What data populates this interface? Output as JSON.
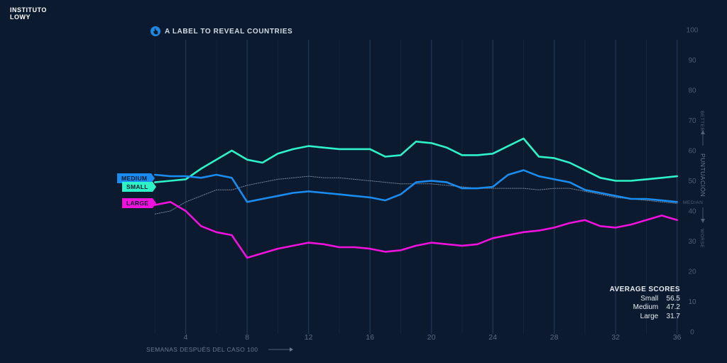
{
  "brand": {
    "line1": "INSTITUTO",
    "line2": "LOWY"
  },
  "hint": {
    "text": "A LABEL TO REVEAL COUNTRIES",
    "icon": "pointer-hand-icon"
  },
  "labels": {
    "medium": "MEDIUM",
    "small": "SMALL",
    "large": "LARGE"
  },
  "average": {
    "title": "AVERAGE SCORES",
    "rows": [
      {
        "name": "Small",
        "value": "56.5"
      },
      {
        "name": "Medium",
        "value": "47.2"
      },
      {
        "name": "Large",
        "value": "31.7"
      }
    ]
  },
  "colors": {
    "background": "#0b1a2f",
    "small": "#2ef2c8",
    "medium": "#1a8cf0",
    "large": "#f012dc",
    "median": "#8a97a8"
  },
  "chart_data": {
    "type": "line",
    "xlabel": "SEMANAS DESPUÉS DEL CASO 100",
    "ylabel": "PUNTUACIÓN",
    "better_label": "BETTER",
    "worse_label": "WORSE",
    "median_label": "MEDIAN",
    "x_ticks": [
      4,
      8,
      12,
      16,
      20,
      24,
      28,
      32,
      36
    ],
    "y_ticks": [
      0,
      10,
      20,
      30,
      40,
      50,
      60,
      70,
      80,
      90,
      100
    ],
    "xlim": [
      1.8,
      36.2
    ],
    "ylim": [
      0,
      100
    ],
    "grid": true,
    "x": [
      2,
      3,
      4,
      5,
      6,
      7,
      8,
      9,
      10,
      11,
      12,
      13,
      14,
      15,
      16,
      17,
      18,
      19,
      20,
      21,
      22,
      23,
      24,
      25,
      26,
      27,
      28,
      29,
      30,
      31,
      32,
      33,
      34,
      35,
      36
    ],
    "series": [
      {
        "name": "Small",
        "values": [
          49.5,
          50,
          50.5,
          54,
          57,
          60,
          57,
          56,
          59,
          60.5,
          61.5,
          61,
          60.5,
          60.5,
          60.5,
          58,
          58.5,
          63,
          62.5,
          61,
          58.5,
          58.5,
          59,
          61.5,
          64,
          58,
          57.5,
          56,
          53.5,
          51,
          50,
          50,
          50.5,
          51,
          51.5
        ]
      },
      {
        "name": "Medium",
        "values": [
          52,
          51.5,
          51.5,
          51,
          52,
          51,
          43,
          44,
          45,
          46,
          46.5,
          46,
          45.5,
          45,
          44.5,
          43.5,
          45.5,
          49.5,
          50,
          49.5,
          47.5,
          47.5,
          48,
          52,
          53.5,
          51.5,
          50.5,
          49.5,
          47,
          46,
          45,
          44,
          44,
          43.5,
          43
        ]
      },
      {
        "name": "Large",
        "values": [
          42,
          43,
          40,
          35,
          33,
          32,
          24.5,
          26,
          27.5,
          28.5,
          29.5,
          29,
          28,
          28,
          27.5,
          26.5,
          27,
          28.5,
          29.5,
          29,
          28.5,
          29,
          31,
          32,
          33,
          33.5,
          34.5,
          36,
          37,
          35,
          34.5,
          35.5,
          37,
          38.5,
          37
        ]
      },
      {
        "name": "Median",
        "values": [
          39,
          40,
          43,
          45,
          47,
          47,
          48.5,
          49.5,
          50.5,
          51,
          51.5,
          51,
          51,
          50.5,
          50,
          49.5,
          49,
          49,
          49,
          48.5,
          48,
          47.5,
          47.5,
          47.5,
          47.5,
          47,
          47.5,
          47.5,
          46.5,
          45.5,
          44.5,
          44,
          43.5,
          43,
          42.5
        ]
      }
    ]
  }
}
